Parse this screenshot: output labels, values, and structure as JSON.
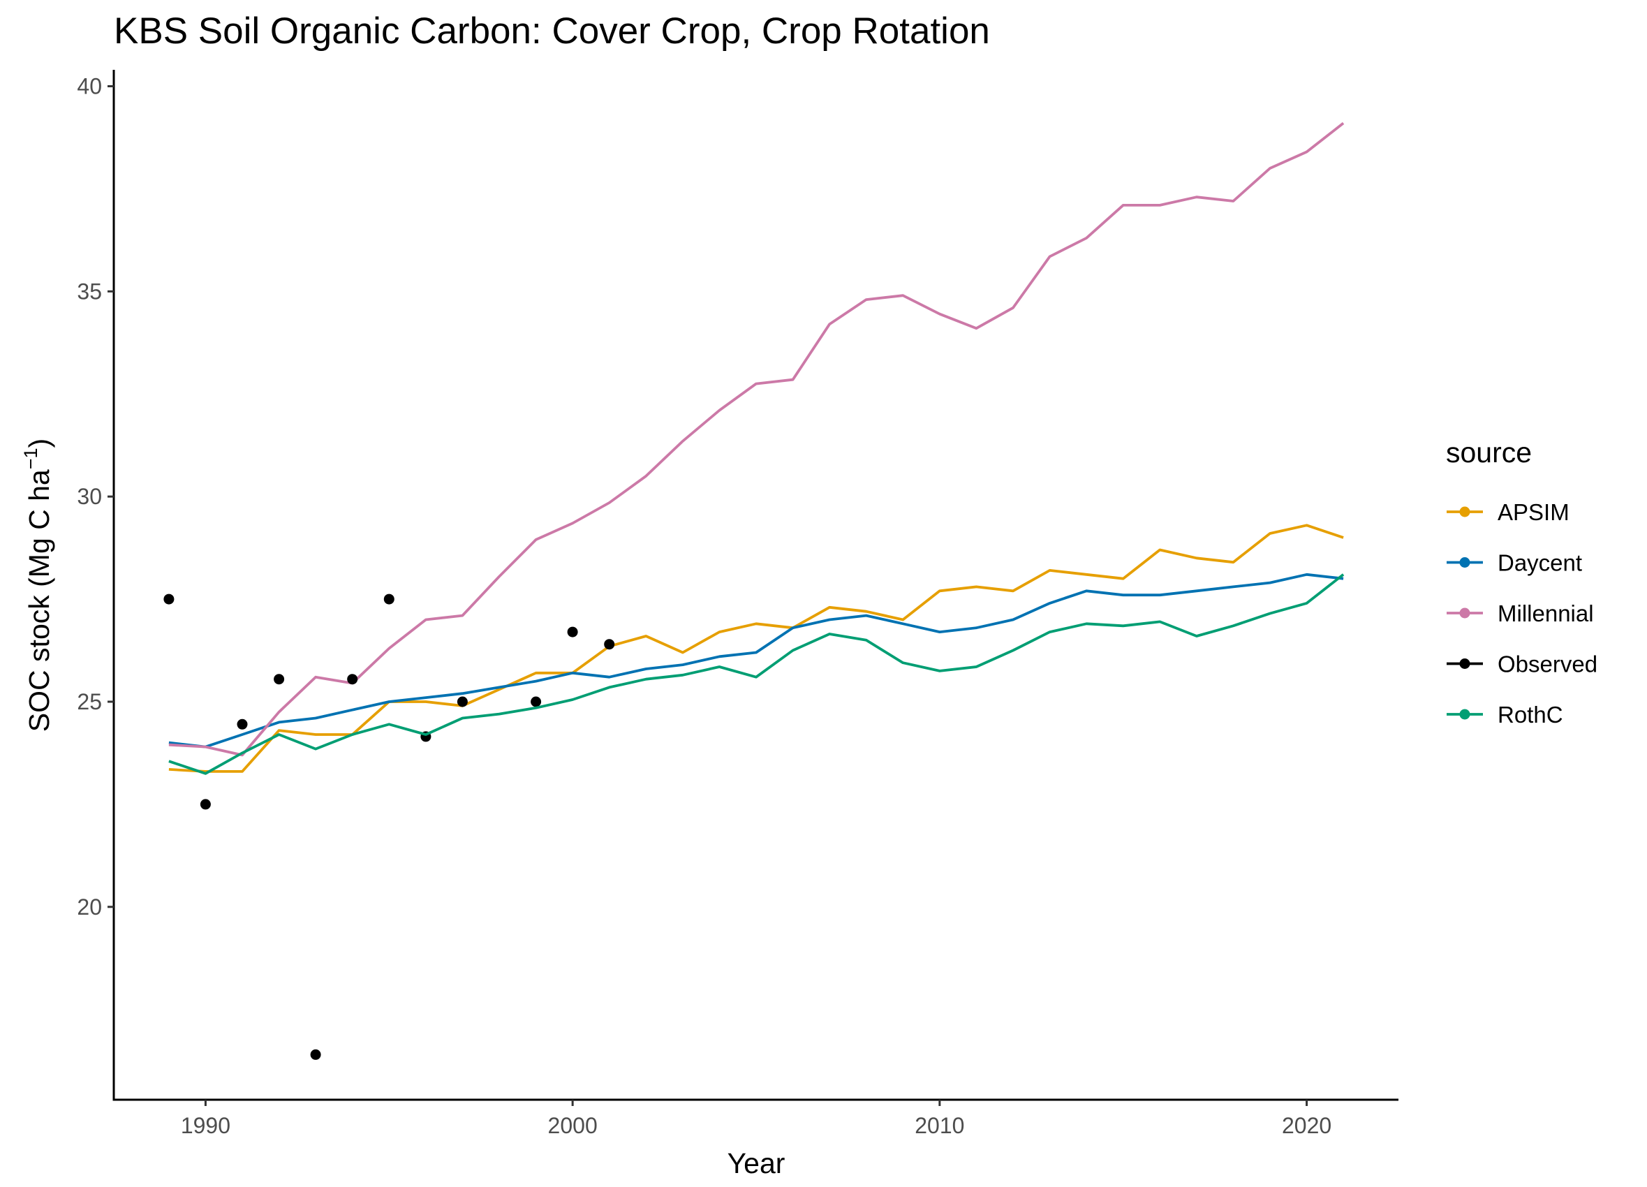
{
  "chart_data": {
    "type": "line",
    "title": "KBS Soil Organic Carbon:  Cover Crop, Crop Rotation",
    "xlabel": "Year",
    "ylabel_main": "SOC stock (Mg C ha",
    "ylabel_sup": "−1",
    "ylabel_close": ")",
    "xlim": [
      1987.5,
      2022.5
    ],
    "ylim": [
      15.3,
      40.4
    ],
    "x_ticks": [
      1990,
      2000,
      2010,
      2020
    ],
    "y_ticks": [
      20,
      25,
      30,
      35,
      40
    ],
    "grid": false,
    "legend": {
      "title": "source",
      "position": "right"
    },
    "series": [
      {
        "name": "APSIM",
        "color": "#E69F00",
        "style": "line",
        "x": [
          1989,
          1990,
          1991,
          1992,
          1993,
          1994,
          1995,
          1996,
          1997,
          1998,
          1999,
          2000,
          2001,
          2002,
          2003,
          2004,
          2005,
          2006,
          2007,
          2008,
          2009,
          2010,
          2011,
          2012,
          2013,
          2014,
          2015,
          2016,
          2017,
          2018,
          2019,
          2020,
          2021
        ],
        "y": [
          23.35,
          23.3,
          23.3,
          24.3,
          24.2,
          24.2,
          25.0,
          25.0,
          24.9,
          25.3,
          25.7,
          25.7,
          26.35,
          26.6,
          26.2,
          26.7,
          26.9,
          26.8,
          27.3,
          27.2,
          27.0,
          27.7,
          27.8,
          27.7,
          28.2,
          28.1,
          28.0,
          28.7,
          28.5,
          28.4,
          29.1,
          29.3,
          29.0
        ]
      },
      {
        "name": "Daycent",
        "color": "#0072B2",
        "style": "line",
        "x": [
          1989,
          1990,
          1991,
          1992,
          1993,
          1994,
          1995,
          1996,
          1997,
          1998,
          1999,
          2000,
          2001,
          2002,
          2003,
          2004,
          2005,
          2006,
          2007,
          2008,
          2009,
          2010,
          2011,
          2012,
          2013,
          2014,
          2015,
          2016,
          2017,
          2018,
          2019,
          2020,
          2021
        ],
        "y": [
          24.0,
          23.9,
          24.2,
          24.5,
          24.6,
          24.8,
          25.0,
          25.1,
          25.2,
          25.35,
          25.5,
          25.7,
          25.6,
          25.8,
          25.9,
          26.1,
          26.2,
          26.8,
          27.0,
          27.1,
          26.9,
          26.7,
          26.8,
          27.0,
          27.4,
          27.7,
          27.6,
          27.6,
          27.7,
          27.8,
          27.9,
          28.1,
          28.0
        ]
      },
      {
        "name": "Millennial",
        "color": "#CC79A7",
        "style": "line",
        "x": [
          1989,
          1990,
          1991,
          1992,
          1993,
          1994,
          1995,
          1996,
          1997,
          1998,
          1999,
          2000,
          2001,
          2002,
          2003,
          2004,
          2005,
          2006,
          2007,
          2008,
          2009,
          2010,
          2011,
          2012,
          2013,
          2014,
          2015,
          2016,
          2017,
          2018,
          2019,
          2020,
          2021
        ],
        "y": [
          23.95,
          23.9,
          23.7,
          24.75,
          25.6,
          25.45,
          26.3,
          27.0,
          27.1,
          28.05,
          28.95,
          29.35,
          29.85,
          30.5,
          31.35,
          32.1,
          32.75,
          32.85,
          34.2,
          34.8,
          34.9,
          34.45,
          34.1,
          34.6,
          35.85,
          36.3,
          37.1,
          37.1,
          37.3,
          37.2,
          38.0,
          38.4,
          39.1
        ]
      },
      {
        "name": "Observed",
        "color": "#000000",
        "style": "point",
        "x": [
          1989,
          1990,
          1991,
          1992,
          1993,
          1994,
          1995,
          1996,
          1997,
          1999,
          2000,
          2001
        ],
        "y": [
          27.5,
          22.5,
          24.45,
          25.55,
          16.4,
          25.55,
          27.5,
          24.15,
          25.0,
          25.0,
          26.7,
          26.4
        ]
      },
      {
        "name": "RothC",
        "color": "#009E73",
        "style": "line",
        "x": [
          1989,
          1990,
          1991,
          1992,
          1993,
          1994,
          1995,
          1996,
          1997,
          1998,
          1999,
          2000,
          2001,
          2002,
          2003,
          2004,
          2005,
          2006,
          2007,
          2008,
          2009,
          2010,
          2011,
          2012,
          2013,
          2014,
          2015,
          2016,
          2017,
          2018,
          2019,
          2020,
          2021
        ],
        "y": [
          23.55,
          23.25,
          23.75,
          24.2,
          23.85,
          24.2,
          24.45,
          24.2,
          24.6,
          24.7,
          24.85,
          25.05,
          25.35,
          25.55,
          25.65,
          25.85,
          25.6,
          26.25,
          26.65,
          26.5,
          25.95,
          25.75,
          25.85,
          26.25,
          26.7,
          26.9,
          26.85,
          26.95,
          26.6,
          26.85,
          27.15,
          27.4,
          28.1
        ]
      }
    ]
  }
}
